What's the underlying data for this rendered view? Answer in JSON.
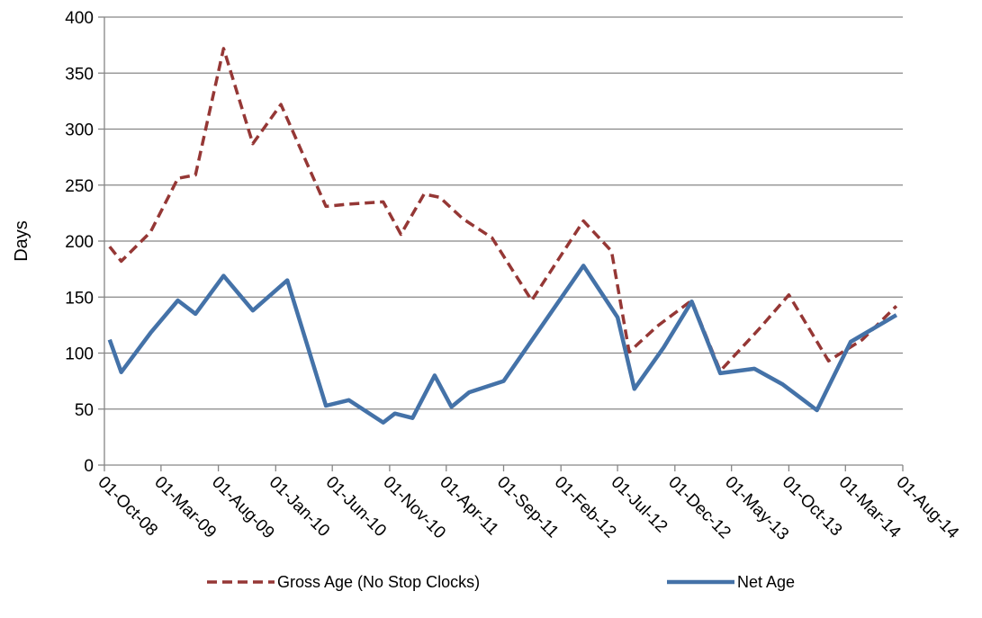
{
  "chart_data": {
    "type": "line",
    "title": "",
    "xlabel": "",
    "ylabel": "Days",
    "ylim": [
      0,
      400
    ],
    "yticks": [
      0,
      50,
      100,
      150,
      200,
      250,
      300,
      350,
      400
    ],
    "xlim": [
      "2008-10-01",
      "2014-08-01"
    ],
    "xticks": [
      "01-Oct-08",
      "01-Mar-09",
      "01-Aug-09",
      "01-Jan-10",
      "01-Jun-10",
      "01-Nov-10",
      "01-Apr-11",
      "01-Sep-11",
      "01-Feb-12",
      "01-Jul-12",
      "01-Dec-12",
      "01-May-13",
      "01-Oct-13",
      "01-Mar-14",
      "01-Aug-14"
    ],
    "grid": true,
    "legend": "bottom",
    "series": [
      {
        "name": "Gross Age (No Stop Clocks)",
        "color": "#953735",
        "style": "dashed",
        "points": [
          [
            "2008-10-15",
            195
          ],
          [
            "2008-11-15",
            182
          ],
          [
            "2009-02-01",
            208
          ],
          [
            "2009-04-15",
            256
          ],
          [
            "2009-06-01",
            259
          ],
          [
            "2009-08-15",
            372
          ],
          [
            "2009-11-01",
            287
          ],
          [
            "2010-01-15",
            322
          ],
          [
            "2010-05-15",
            231
          ],
          [
            "2010-07-15",
            233
          ],
          [
            "2010-10-15",
            235
          ],
          [
            "2010-12-01",
            206
          ],
          [
            "2011-02-01",
            242
          ],
          [
            "2011-03-15",
            239
          ],
          [
            "2011-05-15",
            220
          ],
          [
            "2011-08-01",
            203
          ],
          [
            "2011-11-15",
            147
          ],
          [
            "2012-04-01",
            218
          ],
          [
            "2012-06-15",
            191
          ],
          [
            "2012-08-01",
            101
          ],
          [
            "2012-10-15",
            124
          ],
          [
            "2013-01-15",
            147
          ],
          [
            "2013-04-01",
            84
          ],
          [
            "2013-07-15",
            122
          ],
          [
            "2013-10-01",
            152
          ],
          [
            "2014-01-15",
            93
          ],
          [
            "2014-04-15",
            112
          ],
          [
            "2014-07-15",
            142
          ]
        ]
      },
      {
        "name": "Net Age",
        "color": "#4472a8",
        "style": "solid",
        "points": [
          [
            "2008-10-15",
            112
          ],
          [
            "2008-11-15",
            83
          ],
          [
            "2009-02-01",
            118
          ],
          [
            "2009-04-15",
            147
          ],
          [
            "2009-06-01",
            135
          ],
          [
            "2009-08-15",
            169
          ],
          [
            "2009-11-01",
            138
          ],
          [
            "2010-02-01",
            165
          ],
          [
            "2010-05-15",
            53
          ],
          [
            "2010-07-15",
            58
          ],
          [
            "2010-10-15",
            38
          ],
          [
            "2010-11-15",
            46
          ],
          [
            "2011-01-01",
            42
          ],
          [
            "2011-03-01",
            80
          ],
          [
            "2011-04-15",
            52
          ],
          [
            "2011-06-01",
            65
          ],
          [
            "2011-09-01",
            75
          ],
          [
            "2012-01-01",
            134
          ],
          [
            "2012-04-01",
            178
          ],
          [
            "2012-07-01",
            132
          ],
          [
            "2012-08-15",
            68
          ],
          [
            "2012-11-01",
            105
          ],
          [
            "2013-01-15",
            146
          ],
          [
            "2013-04-01",
            82
          ],
          [
            "2013-07-01",
            86
          ],
          [
            "2013-09-15",
            72
          ],
          [
            "2013-12-15",
            49
          ],
          [
            "2014-03-15",
            110
          ],
          [
            "2014-07-15",
            134
          ]
        ]
      }
    ]
  }
}
